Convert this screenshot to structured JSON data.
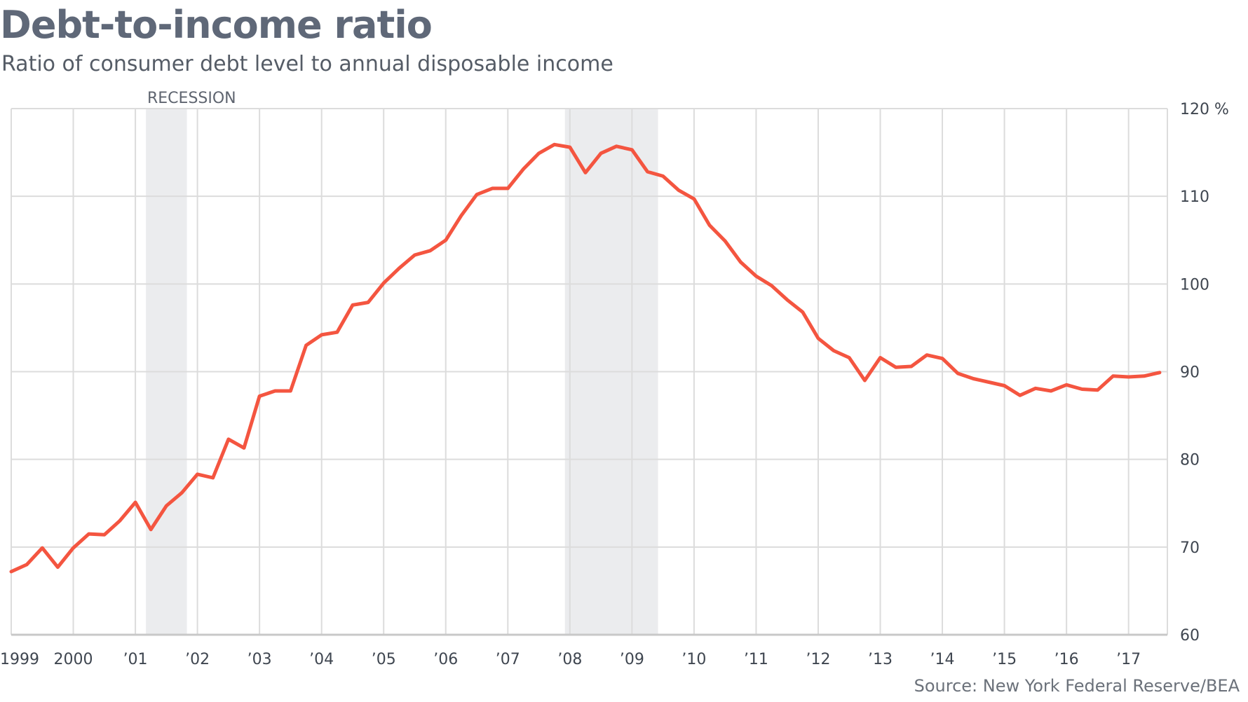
{
  "chart_data": {
    "type": "line",
    "title": "Debt-to-income ratio",
    "subtitle": "Ratio of consumer debt level to annual disposable income",
    "source": "Source: New York Federal Reserve/BEA",
    "recession_label": "RECESSION",
    "y_ticks": [
      {
        "value": 120,
        "label": "120 %"
      },
      {
        "value": 110,
        "label": "110"
      },
      {
        "value": 100,
        "label": "100"
      },
      {
        "value": 90,
        "label": "90"
      },
      {
        "value": 80,
        "label": "80"
      },
      {
        "value": 70,
        "label": "70"
      },
      {
        "value": 60,
        "label": "60"
      }
    ],
    "ylim": [
      60,
      120
    ],
    "xlim": [
      1999.0,
      2017.625
    ],
    "x_ticks": [
      {
        "value": 1999,
        "label": "1999"
      },
      {
        "value": 2000,
        "label": "2000"
      },
      {
        "value": 2001,
        "label": "’01"
      },
      {
        "value": 2002,
        "label": "’02"
      },
      {
        "value": 2003,
        "label": "’03"
      },
      {
        "value": 2004,
        "label": "’04"
      },
      {
        "value": 2005,
        "label": "’05"
      },
      {
        "value": 2006,
        "label": "’06"
      },
      {
        "value": 2007,
        "label": "’07"
      },
      {
        "value": 2008,
        "label": "’08"
      },
      {
        "value": 2009,
        "label": "’09"
      },
      {
        "value": 2010,
        "label": "’10"
      },
      {
        "value": 2011,
        "label": "’11"
      },
      {
        "value": 2012,
        "label": "’12"
      },
      {
        "value": 2013,
        "label": "’13"
      },
      {
        "value": 2014,
        "label": "’14"
      },
      {
        "value": 2015,
        "label": "’15"
      },
      {
        "value": 2016,
        "label": "’16"
      },
      {
        "value": 2017,
        "label": "’17"
      }
    ],
    "recessions": [
      {
        "start": 2001.17,
        "end": 2001.83
      },
      {
        "start": 2007.92,
        "end": 2009.42
      }
    ],
    "grid": true,
    "line_color": "#f45540",
    "series": [
      {
        "x": [
          1999.0,
          1999.25,
          1999.5,
          1999.75,
          2000.0,
          2000.25,
          2000.5,
          2000.75,
          2001.0,
          2001.25,
          2001.5,
          2001.75,
          2002.0,
          2002.25,
          2002.5,
          2002.75,
          2003.0,
          2003.25,
          2003.5,
          2003.75,
          2004.0,
          2004.25,
          2004.5,
          2004.75,
          2005.0,
          2005.25,
          2005.5,
          2005.75,
          2006.0,
          2006.25,
          2006.5,
          2006.75,
          2007.0,
          2007.25,
          2007.5,
          2007.75,
          2008.0,
          2008.25,
          2008.5,
          2008.75,
          2009.0,
          2009.25,
          2009.5,
          2009.75,
          2010.0,
          2010.25,
          2010.5,
          2010.75,
          2011.0,
          2011.25,
          2011.5,
          2011.75,
          2012.0,
          2012.25,
          2012.5,
          2012.75,
          2013.0,
          2013.25,
          2013.5,
          2013.75,
          2014.0,
          2014.25,
          2014.5,
          2014.75,
          2015.0,
          2015.25,
          2015.5,
          2015.75,
          2016.0,
          2016.25,
          2016.5,
          2016.75,
          2017.0,
          2017.25,
          2017.5
        ],
        "values": [
          67.2,
          68.0,
          69.9,
          67.7,
          69.9,
          71.5,
          71.4,
          73.0,
          75.1,
          72.0,
          74.7,
          76.2,
          78.3,
          77.9,
          82.3,
          81.3,
          87.2,
          87.8,
          87.8,
          93.0,
          94.2,
          94.5,
          97.6,
          97.9,
          100.1,
          101.8,
          103.3,
          103.8,
          105.0,
          107.8,
          110.2,
          110.9,
          110.9,
          113.1,
          114.9,
          115.9,
          115.6,
          112.7,
          114.9,
          115.7,
          115.3,
          112.8,
          112.3,
          110.7,
          109.7,
          106.7,
          104.9,
          102.5,
          100.9,
          99.8,
          98.2,
          96.8,
          93.8,
          92.4,
          91.6,
          89.0,
          91.6,
          90.5,
          90.6,
          91.9,
          91.5,
          89.8,
          89.2,
          88.8,
          88.4,
          87.3,
          88.1,
          87.8,
          88.5,
          88.0,
          87.9,
          89.5,
          89.4,
          89.5,
          89.9
        ]
      }
    ]
  }
}
